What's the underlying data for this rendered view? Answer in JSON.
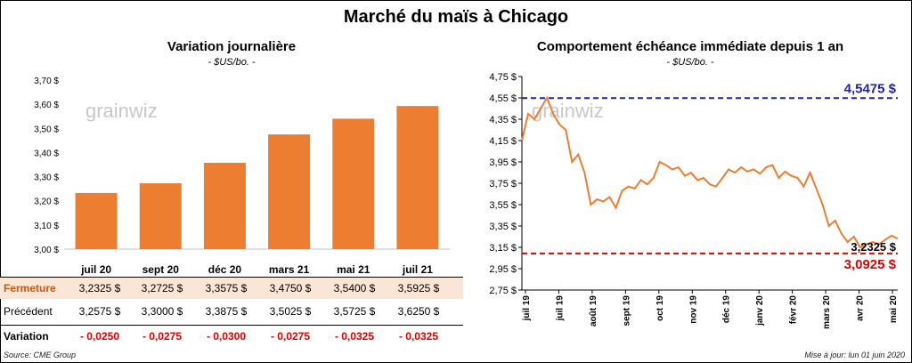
{
  "title": "Marché du maïs à Chicago",
  "left": {
    "title": "Variation journalière",
    "units": "- $US/bo. -",
    "watermark": "grainwiz"
  },
  "right": {
    "title": "Comportement échéance immédiate depuis 1 an",
    "units": "- $US/bo. -",
    "watermark": "grainwiz",
    "high_label": "4,5475 $",
    "low_label": "3,0925 $",
    "last_label": "3,2325 $"
  },
  "table": {
    "rows": [
      {
        "label": "Fermeture",
        "cells": [
          "3,2325  $",
          "3,2725  $",
          "3,3575  $",
          "3,4750  $",
          "3,5400  $",
          "3,5925  $"
        ]
      },
      {
        "label": "Précédent",
        "cells": [
          "3,2575  $",
          "3,3000  $",
          "3,3875  $",
          "3,5025  $",
          "3,5725  $",
          "3,6250  $"
        ]
      },
      {
        "label": "Variation",
        "cells": [
          "- 0,0250",
          "- 0,0275",
          "- 0,0300",
          "- 0,0275",
          "- 0,0325",
          "- 0,0325"
        ]
      }
    ]
  },
  "footer": {
    "source": "Source: CME Group",
    "updated": "Mise à jour: lun 01 juin 2020"
  },
  "colors": {
    "bar": "#ed7d31",
    "line": "#ed7d31",
    "high": "#1f1fb4",
    "low": "#e00000",
    "fermeture_bg": "#fbe5d6",
    "variation": "#e00000"
  },
  "chart_data": [
    {
      "type": "bar",
      "categories": [
        "juil 20",
        "sept 20",
        "déc 20",
        "mars 21",
        "mai 21",
        "juil 21"
      ],
      "values": [
        3.2325,
        3.2725,
        3.3575,
        3.475,
        3.54,
        3.5925
      ],
      "ylim": [
        3.0,
        3.7
      ],
      "yticks": [
        "3,00 $",
        "3,10 $",
        "3,20 $",
        "3,30 $",
        "3,40 $",
        "3,50 $",
        "3,60 $",
        "3,70 $"
      ],
      "grid": false
    },
    {
      "type": "line",
      "xticks": [
        "juil 19",
        "juil 19",
        "août 19",
        "sept 19",
        "oct 19",
        "nov 19",
        "déc 19",
        "janv 20",
        "févr 20",
        "mars 20",
        "avr 20",
        "mai 20"
      ],
      "x": [
        0,
        1,
        2,
        3,
        4,
        5,
        6,
        7,
        8,
        9,
        10,
        11,
        12,
        13,
        14,
        15,
        16,
        17,
        18,
        19,
        20,
        21,
        22,
        23,
        24,
        25,
        26,
        27,
        28,
        29,
        30,
        31,
        32,
        33,
        34,
        35,
        36,
        37,
        38,
        39,
        40,
        41,
        42,
        43,
        44,
        45,
        46,
        47,
        48,
        49,
        50,
        51,
        52,
        53,
        54,
        55,
        56,
        57,
        58,
        59,
        60
      ],
      "values": [
        4.15,
        4.4,
        4.35,
        4.45,
        4.55,
        4.4,
        4.3,
        4.25,
        3.95,
        4.02,
        3.85,
        3.55,
        3.6,
        3.58,
        3.62,
        3.52,
        3.68,
        3.72,
        3.7,
        3.78,
        3.74,
        3.8,
        3.95,
        3.92,
        3.88,
        3.9,
        3.82,
        3.85,
        3.78,
        3.8,
        3.74,
        3.72,
        3.8,
        3.88,
        3.85,
        3.9,
        3.86,
        3.88,
        3.84,
        3.9,
        3.92,
        3.8,
        3.86,
        3.82,
        3.8,
        3.72,
        3.85,
        3.7,
        3.55,
        3.35,
        3.4,
        3.28,
        3.2,
        3.25,
        3.15,
        3.18,
        3.2,
        3.18,
        3.22,
        3.26,
        3.23
      ],
      "ylim": [
        2.75,
        4.75
      ],
      "yticks": [
        "2,75 $",
        "2,95 $",
        "3,15 $",
        "3,35 $",
        "3,55 $",
        "3,75 $",
        "3,95 $",
        "4,15 $",
        "4,35 $",
        "4,55 $",
        "4,75 $"
      ],
      "hlines": [
        4.5475,
        3.0925
      ],
      "grid": false
    }
  ]
}
